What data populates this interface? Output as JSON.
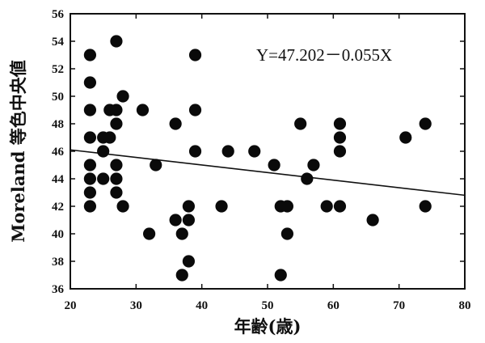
{
  "chart_data": {
    "type": "scatter",
    "xlabel": "年齢(歳)",
    "ylabel": "Moreland 等色中央値",
    "xlim": [
      20,
      80
    ],
    "ylim": [
      36,
      56
    ],
    "x_ticks": [
      20,
      30,
      40,
      50,
      60,
      70,
      80
    ],
    "y_ticks": [
      36,
      38,
      40,
      42,
      44,
      46,
      48,
      50,
      52,
      54,
      56
    ],
    "grid": false,
    "annotation": "Y=47.202－0.055X",
    "regression": {
      "intercept": 47.202,
      "slope": -0.055
    },
    "points": [
      {
        "x": 23,
        "y": 53
      },
      {
        "x": 23,
        "y": 51
      },
      {
        "x": 23,
        "y": 49
      },
      {
        "x": 23,
        "y": 47
      },
      {
        "x": 23,
        "y": 45
      },
      {
        "x": 23,
        "y": 44
      },
      {
        "x": 23,
        "y": 43
      },
      {
        "x": 23,
        "y": 42
      },
      {
        "x": 25,
        "y": 47
      },
      {
        "x": 25,
        "y": 46
      },
      {
        "x": 25,
        "y": 44
      },
      {
        "x": 26,
        "y": 49
      },
      {
        "x": 26,
        "y": 47
      },
      {
        "x": 27,
        "y": 54
      },
      {
        "x": 27,
        "y": 49
      },
      {
        "x": 27,
        "y": 48
      },
      {
        "x": 27,
        "y": 45
      },
      {
        "x": 27,
        "y": 44
      },
      {
        "x": 27,
        "y": 43
      },
      {
        "x": 28,
        "y": 50
      },
      {
        "x": 28,
        "y": 42
      },
      {
        "x": 31,
        "y": 49
      },
      {
        "x": 32,
        "y": 40
      },
      {
        "x": 33,
        "y": 45
      },
      {
        "x": 36,
        "y": 48
      },
      {
        "x": 36,
        "y": 41
      },
      {
        "x": 37,
        "y": 40
      },
      {
        "x": 37,
        "y": 37
      },
      {
        "x": 38,
        "y": 42
      },
      {
        "x": 38,
        "y": 41
      },
      {
        "x": 38,
        "y": 38
      },
      {
        "x": 39,
        "y": 53
      },
      {
        "x": 39,
        "y": 49
      },
      {
        "x": 39,
        "y": 46
      },
      {
        "x": 43,
        "y": 42
      },
      {
        "x": 44,
        "y": 46
      },
      {
        "x": 48,
        "y": 46
      },
      {
        "x": 51,
        "y": 45
      },
      {
        "x": 52,
        "y": 42
      },
      {
        "x": 52,
        "y": 37
      },
      {
        "x": 53,
        "y": 42
      },
      {
        "x": 53,
        "y": 40
      },
      {
        "x": 55,
        "y": 48
      },
      {
        "x": 56,
        "y": 44
      },
      {
        "x": 57,
        "y": 45
      },
      {
        "x": 59,
        "y": 42
      },
      {
        "x": 61,
        "y": 48
      },
      {
        "x": 61,
        "y": 47
      },
      {
        "x": 61,
        "y": 46
      },
      {
        "x": 61,
        "y": 42
      },
      {
        "x": 66,
        "y": 41
      },
      {
        "x": 71,
        "y": 47
      },
      {
        "x": 74,
        "y": 48
      },
      {
        "x": 74,
        "y": 42
      }
    ]
  }
}
